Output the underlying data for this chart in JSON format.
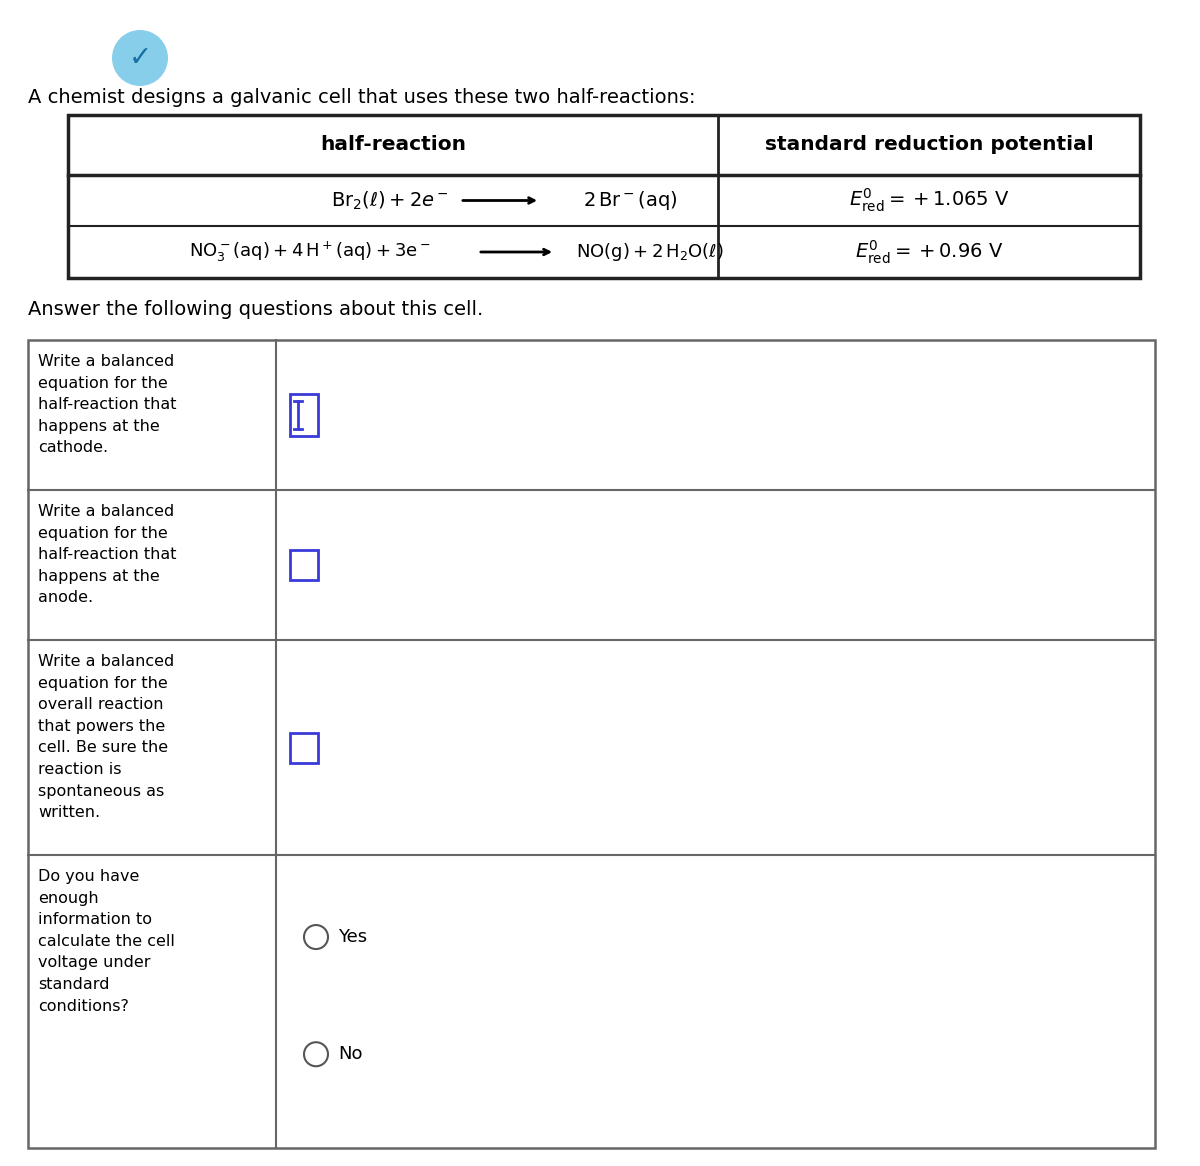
{
  "bg_color": "#ffffff",
  "intro_text": "A chemist designs a galvanic cell that uses these two half-reactions:",
  "answer_text": "Answer the following questions about this cell.",
  "header1": "half-reaction",
  "header2": "standard reduction potential",
  "text_color": "#000000",
  "blue_color": "#3a3adb",
  "table_border_color": "#222222",
  "answer_border_color": "#666666",
  "icon_bg": "#87CEEB",
  "icon_check_color": "#1a6fa3",
  "q1_label": "Write a balanced\nequation for the\nhalf-reaction that\nhappens at the\ncathode.",
  "q2_label": "Write a balanced\nequation for the\nhalf-reaction that\nhappens at the\nanode.",
  "q3_label": "Write a balanced\nequation for the\noverall reaction\nthat powers the\ncell. Be sure the\nreaction is\nspontaneous as\nwritten.",
  "q4_label": "Do you have\nenough\ninformation to\ncalculate the cell\nvoltage under\nstandard\nconditions?",
  "yes_label": "Yes",
  "no_label": "No"
}
